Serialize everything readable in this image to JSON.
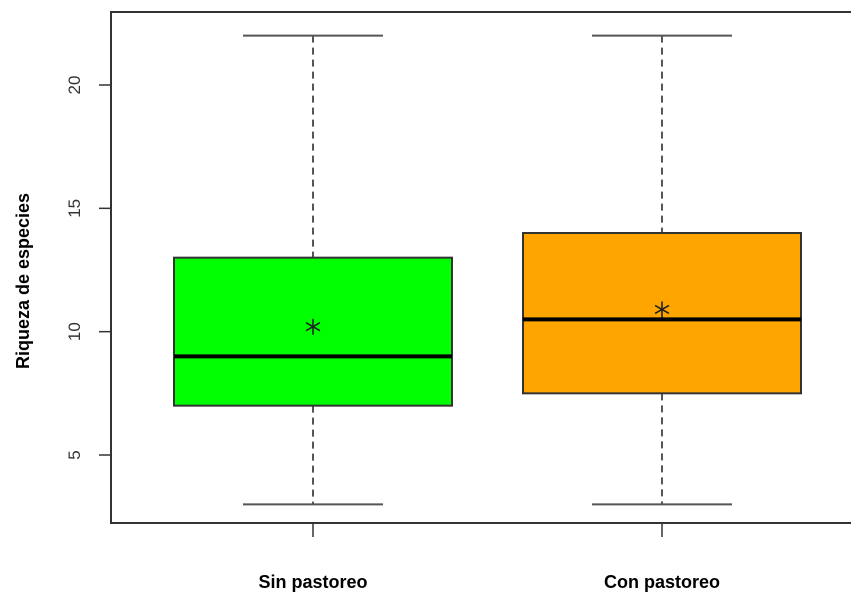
{
  "chart_data": {
    "type": "box",
    "title": "",
    "xlabel": "",
    "ylabel": "Riqueza de especies",
    "ylim": [
      2.5,
      22.5
    ],
    "yticks": [
      5,
      10,
      15,
      20
    ],
    "grid": false,
    "categories": [
      "Sin pastoreo",
      "Con pastoreo"
    ],
    "boxes": [
      {
        "category": "Sin pastoreo",
        "min": 3,
        "q1": 7,
        "median": 9,
        "q3": 13,
        "max": 22,
        "mean": 10.2,
        "color": "#00ff00"
      },
      {
        "category": "Con pastoreo",
        "min": 3,
        "q1": 7.5,
        "median": 10.5,
        "q3": 14,
        "max": 22,
        "mean": 10.9,
        "color": "#ffa500"
      }
    ]
  }
}
